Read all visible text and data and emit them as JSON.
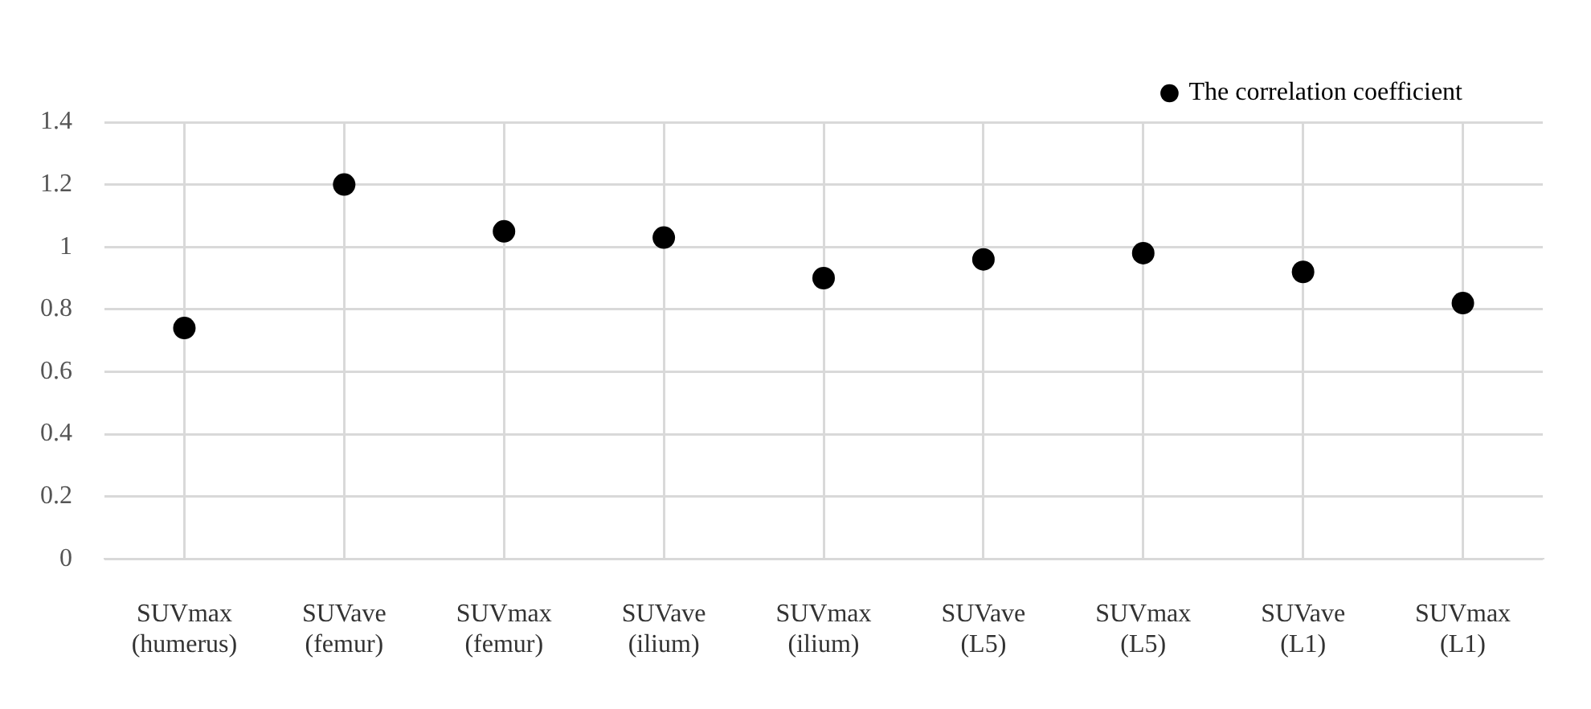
{
  "chart_data": {
    "type": "scatter",
    "categories": [
      "SUVmax\n(humerus)",
      "SUVave\n(femur)",
      "SUVmax\n(femur)",
      "SUVave\n(ilium)",
      "SUVmax\n(ilium)",
      "SUVave\n(L5)",
      "SUVmax\n(L5)",
      "SUVave\n(L1)",
      "SUVmax\n(L1)"
    ],
    "series": [
      {
        "name": "The correlation coefficient",
        "color": "#000000",
        "values": [
          0.74,
          1.2,
          1.05,
          1.03,
          0.9,
          0.96,
          0.98,
          0.92,
          0.82
        ]
      }
    ],
    "ylim": [
      0,
      1.4
    ],
    "yticks": [
      0,
      0.2,
      0.4,
      0.6,
      0.8,
      1,
      1.2,
      1.4
    ],
    "grid": true,
    "legend": "top right",
    "marker": "circle"
  }
}
